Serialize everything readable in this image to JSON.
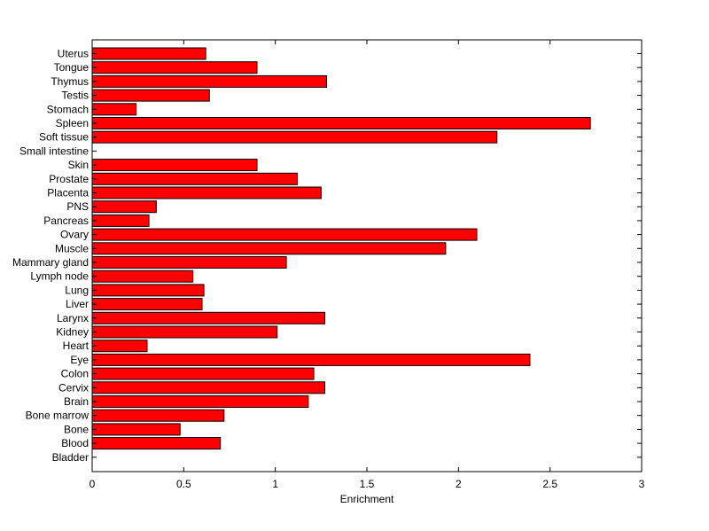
{
  "chart_data": {
    "type": "bar",
    "orientation": "horizontal",
    "categories": [
      "Uterus",
      "Tongue",
      "Thymus",
      "Testis",
      "Stomach",
      "Spleen",
      "Soft tissue",
      "Small intestine",
      "Skin",
      "Prostate",
      "Placenta",
      "PNS",
      "Pancreas",
      "Ovary",
      "Muscle",
      "Mammary gland",
      "Lymph node",
      "Lung",
      "Liver",
      "Larynx",
      "Kidney",
      "Heart",
      "Eye",
      "Colon",
      "Cervix",
      "Brain",
      "Bone marrow",
      "Bone",
      "Blood",
      "Bladder"
    ],
    "values": [
      0.62,
      0.9,
      1.28,
      0.64,
      0.24,
      2.72,
      2.21,
      0,
      0.9,
      1.12,
      1.25,
      0.35,
      0.31,
      2.1,
      1.93,
      1.06,
      0.55,
      0.61,
      0.6,
      1.27,
      1.01,
      0.3,
      2.39,
      1.21,
      1.27,
      1.18,
      0.72,
      0.48,
      0.7,
      0
    ],
    "xlabel": "Enrichment",
    "ylabel": "",
    "title": "",
    "xlim": [
      0,
      3
    ],
    "xticks": [
      "0",
      "0.5",
      "1",
      "1.5",
      "2",
      "2.5",
      "3"
    ],
    "bar_color": "#ff0000",
    "grid": false,
    "legend": "none"
  }
}
